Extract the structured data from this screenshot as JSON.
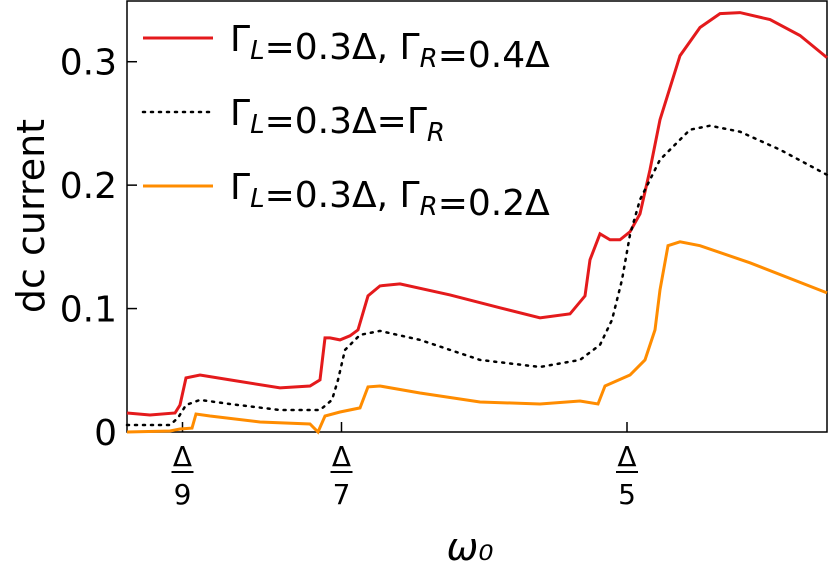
{
  "chart_data": {
    "type": "line",
    "xlabel": "ω₀",
    "ylabel": "dc current",
    "xlim": [
      0.1,
      0.24
    ],
    "ylim": [
      0,
      0.35
    ],
    "xticks": [
      {
        "value": 0.1111,
        "label": "Δ/9"
      },
      {
        "value": 0.1429,
        "label": "Δ/7"
      },
      {
        "value": 0.2,
        "label": "Δ/5"
      }
    ],
    "yticks": [
      0,
      0.1,
      0.2,
      0.3
    ],
    "legend": "upper left",
    "series": [
      {
        "name": "ΓL=0.3Δ, ΓR=0.4Δ",
        "color": "#e41a1c",
        "style": "solid",
        "x": [
          0.1,
          0.1046,
          0.1096,
          0.1106,
          0.1118,
          0.1146,
          0.1206,
          0.1306,
          0.1366,
          0.1386,
          0.1396,
          0.1406,
          0.1426,
          0.1446,
          0.1462,
          0.1482,
          0.1506,
          0.1546,
          0.1646,
          0.1746,
          0.1826,
          0.1886,
          0.1916,
          0.1926,
          0.1946,
          0.1966,
          0.1986,
          0.2006,
          0.2026,
          0.2046,
          0.2066,
          0.2106,
          0.2146,
          0.2186,
          0.2226,
          0.2286,
          0.2346,
          0.24
        ],
        "values": [
          0.0154,
          0.0138,
          0.0154,
          0.0219,
          0.0438,
          0.0462,
          0.0422,
          0.0357,
          0.0373,
          0.0422,
          0.0762,
          0.0762,
          0.0746,
          0.0779,
          0.0827,
          0.1103,
          0.1184,
          0.12,
          0.1111,
          0.1006,
          0.0925,
          0.0957,
          0.1103,
          0.1395,
          0.1606,
          0.1557,
          0.1557,
          0.1622,
          0.1768,
          0.2125,
          0.253,
          0.3049,
          0.3277,
          0.339,
          0.3398,
          0.3341,
          0.3212,
          0.3033
        ]
      },
      {
        "name": "ΓL=0.3Δ=ΓR",
        "color": "#000000",
        "style": "dotted",
        "x": [
          0.1,
          0.1086,
          0.1102,
          0.1118,
          0.1146,
          0.1206,
          0.1306,
          0.1386,
          0.141,
          0.1422,
          0.1436,
          0.1466,
          0.1506,
          0.1586,
          0.1706,
          0.1826,
          0.1906,
          0.1946,
          0.197,
          0.199,
          0.2006,
          0.2026,
          0.2066,
          0.2126,
          0.2166,
          0.2226,
          0.2306,
          0.24
        ],
        "values": [
          0.0057,
          0.0057,
          0.0114,
          0.0219,
          0.026,
          0.0227,
          0.0178,
          0.0178,
          0.026,
          0.0422,
          0.0665,
          0.0787,
          0.0819,
          0.0746,
          0.0584,
          0.0527,
          0.0584,
          0.0706,
          0.0908,
          0.1233,
          0.1598,
          0.1882,
          0.2206,
          0.2449,
          0.2482,
          0.2433,
          0.2287,
          0.2084
        ]
      },
      {
        "name": "ΓL=0.3Δ, ΓR=0.2Δ",
        "color": "#ff8c00",
        "style": "solid",
        "x": [
          0.1,
          0.1086,
          0.1106,
          0.113,
          0.1138,
          0.1166,
          0.1266,
          0.1366,
          0.1382,
          0.1396,
          0.1426,
          0.1466,
          0.1482,
          0.1506,
          0.1586,
          0.1706,
          0.1826,
          0.1906,
          0.1942,
          0.1956,
          0.2006,
          0.2036,
          0.2056,
          0.2066,
          0.2082,
          0.2106,
          0.2146,
          0.2246,
          0.24
        ],
        "values": [
          0,
          0.0008,
          0.0024,
          0.0032,
          0.0146,
          0.013,
          0.0081,
          0.0065,
          0,
          0.013,
          0.0162,
          0.0195,
          0.0365,
          0.0373,
          0.0316,
          0.0243,
          0.0227,
          0.0251,
          0.0227,
          0.0373,
          0.0462,
          0.0584,
          0.0827,
          0.1152,
          0.1509,
          0.1541,
          0.1509,
          0.1371,
          0.1127
        ]
      }
    ]
  }
}
